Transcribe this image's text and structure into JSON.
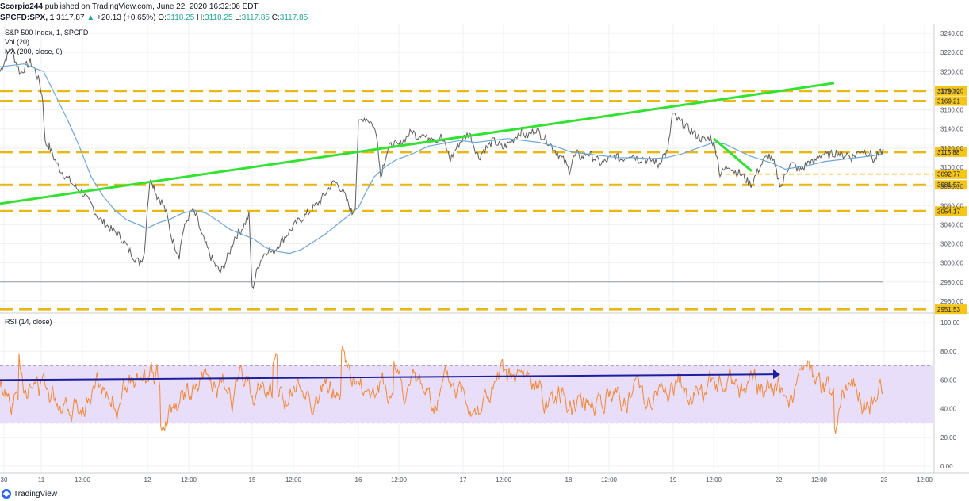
{
  "header": {
    "publisher": "Scorpio244",
    "published_text": "published on TradingView.com, June 22, 2020 16:32:06 EDT",
    "symbol": "SPCFD:SPX, 1",
    "last": "3117.87",
    "change": "+20.13 (+0.65%)",
    "o_label": "O:",
    "o_val": "3118.25",
    "h_label": "H:",
    "h_val": "3118.25",
    "l_label": "L:",
    "l_val": "3117.85",
    "c_label": "C:",
    "c_val": "3117.85"
  },
  "legend": {
    "title": "S&P 500 Index, 1, SPCFD",
    "vol": "Vol (20)",
    "ma": "MA (200, close, 0)",
    "rsi": "RSI (14, close)"
  },
  "footer": {
    "brand": "TradingView"
  },
  "colors": {
    "candle": "#5d5d5d",
    "ma": "#6ea6d6",
    "trend": "#33e133",
    "level": "#e8b816",
    "rsi": "#f08a3a",
    "rsi_band": "#e9defa",
    "rsi_arrow": "#1d1f9e",
    "grid": "#eef0f3"
  },
  "chart_data": [
    {
      "type": "line",
      "name": "S&P 500 Index, 1, SPCFD",
      "x_ticks": [
        "30",
        "11",
        "12:00",
        "12",
        "12:00",
        "15",
        "12:00",
        "16",
        "12:00",
        "17",
        "12:00",
        "18",
        "12:00",
        "19",
        "12:00",
        "22",
        "12:00",
        "23",
        "12:00"
      ],
      "y_ticks": [
        2960,
        2980,
        3000,
        3020,
        3040,
        3060,
        3080,
        3100,
        3120,
        3140,
        3160,
        3180,
        3200,
        3220,
        3240
      ],
      "ylim": [
        2950,
        3250
      ],
      "price_path": [
        [
          0,
          3200
        ],
        [
          8,
          3215
        ],
        [
          14,
          3225
        ],
        [
          20,
          3210
        ],
        [
          26,
          3198
        ],
        [
          32,
          3205
        ],
        [
          38,
          3210
        ],
        [
          44,
          3202
        ],
        [
          50,
          3188
        ],
        [
          54,
          3170
        ],
        [
          57,
          3125
        ],
        [
          62,
          3122
        ],
        [
          68,
          3110
        ],
        [
          74,
          3100
        ],
        [
          80,
          3093
        ],
        [
          86,
          3088
        ],
        [
          92,
          3082
        ],
        [
          98,
          3077
        ],
        [
          104,
          3073
        ],
        [
          110,
          3066
        ],
        [
          116,
          3060
        ],
        [
          122,
          3050
        ],
        [
          128,
          3044
        ],
        [
          134,
          3040
        ],
        [
          140,
          3035
        ],
        [
          146,
          3032
        ],
        [
          152,
          3027
        ],
        [
          158,
          3020
        ],
        [
          164,
          3012
        ],
        [
          170,
          3005
        ],
        [
          176,
          3000
        ],
        [
          182,
          3010
        ],
        [
          186,
          3060
        ],
        [
          190,
          3090
        ],
        [
          194,
          3080
        ],
        [
          198,
          3070
        ],
        [
          204,
          3064
        ],
        [
          210,
          3052
        ],
        [
          216,
          3028
        ],
        [
          222,
          3015
        ],
        [
          226,
          3008
        ],
        [
          230,
          3030
        ],
        [
          236,
          3045
        ],
        [
          242,
          3055
        ],
        [
          248,
          3048
        ],
        [
          254,
          3030
        ],
        [
          260,
          3018
        ],
        [
          266,
          3006
        ],
        [
          272,
          2997
        ],
        [
          278,
          2990
        ],
        [
          284,
          3000
        ],
        [
          290,
          3012
        ],
        [
          296,
          3027
        ],
        [
          302,
          3032
        ],
        [
          308,
          3040
        ],
        [
          314,
          3050
        ],
        [
          318,
          2972
        ],
        [
          322,
          2985
        ],
        [
          326,
          2998
        ],
        [
          332,
          3008
        ],
        [
          338,
          3014
        ],
        [
          344,
          3010
        ],
        [
          350,
          3018
        ],
        [
          356,
          3024
        ],
        [
          362,
          3030
        ],
        [
          368,
          3036
        ],
        [
          374,
          3042
        ],
        [
          380,
          3046
        ],
        [
          386,
          3050
        ],
        [
          392,
          3055
        ],
        [
          398,
          3060
        ],
        [
          404,
          3065
        ],
        [
          410,
          3072
        ],
        [
          416,
          3080
        ],
        [
          422,
          3085
        ],
        [
          428,
          3080
        ],
        [
          434,
          3072
        ],
        [
          440,
          3060
        ],
        [
          444,
          3052
        ],
        [
          448,
          3060
        ],
        [
          452,
          3145
        ],
        [
          458,
          3152
        ],
        [
          464,
          3150
        ],
        [
          470,
          3145
        ],
        [
          476,
          3130
        ],
        [
          480,
          3090
        ],
        [
          484,
          3105
        ],
        [
          490,
          3120
        ],
        [
          496,
          3125
        ],
        [
          502,
          3122
        ],
        [
          508,
          3128
        ],
        [
          514,
          3133
        ],
        [
          520,
          3138
        ],
        [
          526,
          3132
        ],
        [
          532,
          3136
        ],
        [
          538,
          3130
        ],
        [
          544,
          3134
        ],
        [
          550,
          3128
        ],
        [
          556,
          3132
        ],
        [
          562,
          3122
        ],
        [
          568,
          3108
        ],
        [
          574,
          3118
        ],
        [
          580,
          3126
        ],
        [
          586,
          3132
        ],
        [
          592,
          3136
        ],
        [
          598,
          3122
        ],
        [
          604,
          3110
        ],
        [
          610,
          3118
        ],
        [
          616,
          3122
        ],
        [
          622,
          3128
        ],
        [
          628,
          3124
        ],
        [
          634,
          3120
        ],
        [
          640,
          3124
        ],
        [
          646,
          3128
        ],
        [
          652,
          3134
        ],
        [
          658,
          3138
        ],
        [
          664,
          3132
        ],
        [
          670,
          3136
        ],
        [
          676,
          3140
        ],
        [
          682,
          3134
        ],
        [
          688,
          3130
        ],
        [
          694,
          3124
        ],
        [
          700,
          3118
        ],
        [
          706,
          3112
        ],
        [
          712,
          3106
        ],
        [
          718,
          3096
        ],
        [
          722,
          3108
        ],
        [
          728,
          3114
        ],
        [
          734,
          3110
        ],
        [
          740,
          3115
        ],
        [
          746,
          3112
        ],
        [
          752,
          3108
        ],
        [
          758,
          3104
        ],
        [
          764,
          3106
        ],
        [
          770,
          3110
        ],
        [
          776,
          3112
        ],
        [
          782,
          3108
        ],
        [
          788,
          3110
        ],
        [
          794,
          3114
        ],
        [
          800,
          3112
        ],
        [
          806,
          3108
        ],
        [
          812,
          3110
        ],
        [
          818,
          3106
        ],
        [
          824,
          3108
        ],
        [
          830,
          3102
        ],
        [
          836,
          3112
        ],
        [
          842,
          3116
        ],
        [
          848,
          3156
        ],
        [
          854,
          3150
        ],
        [
          860,
          3146
        ],
        [
          866,
          3142
        ],
        [
          872,
          3138
        ],
        [
          878,
          3134
        ],
        [
          884,
          3130
        ],
        [
          890,
          3128
        ],
        [
          896,
          3132
        ],
        [
          900,
          3124
        ],
        [
          904,
          3114
        ],
        [
          908,
          3092
        ],
        [
          914,
          3098
        ],
        [
          920,
          3102
        ],
        [
          926,
          3096
        ],
        [
          932,
          3094
        ],
        [
          938,
          3090
        ],
        [
          944,
          3084
        ],
        [
          948,
          3082
        ],
        [
          952,
          3090
        ],
        [
          958,
          3100
        ],
        [
          964,
          3108
        ],
        [
          970,
          3112
        ],
        [
          976,
          3104
        ],
        [
          982,
          3086
        ],
        [
          986,
          3080
        ],
        [
          990,
          3092
        ],
        [
          996,
          3104
        ],
        [
          1002,
          3102
        ],
        [
          1008,
          3096
        ],
        [
          1014,
          3100
        ],
        [
          1020,
          3106
        ],
        [
          1026,
          3104
        ],
        [
          1032,
          3112
        ],
        [
          1038,
          3114
        ],
        [
          1044,
          3112
        ],
        [
          1050,
          3114
        ],
        [
          1056,
          3116
        ],
        [
          1062,
          3112
        ],
        [
          1068,
          3114
        ],
        [
          1074,
          3110
        ],
        [
          1080,
          3114
        ],
        [
          1086,
          3118
        ],
        [
          1092,
          3116
        ],
        [
          1098,
          3114
        ],
        [
          1102,
          3106
        ],
        [
          1106,
          3112
        ],
        [
          1112,
          3116
        ],
        [
          1114,
          3118
        ]
      ],
      "ma_path": [
        [
          0,
          3205
        ],
        [
          30,
          3208
        ],
        [
          55,
          3200
        ],
        [
          70,
          3175
        ],
        [
          85,
          3150
        ],
        [
          100,
          3122
        ],
        [
          115,
          3090
        ],
        [
          130,
          3070
        ],
        [
          145,
          3055
        ],
        [
          160,
          3045
        ],
        [
          175,
          3040
        ],
        [
          185,
          3036
        ],
        [
          200,
          3042
        ],
        [
          215,
          3046
        ],
        [
          230,
          3052
        ],
        [
          245,
          3055
        ],
        [
          260,
          3052
        ],
        [
          275,
          3044
        ],
        [
          290,
          3035
        ],
        [
          305,
          3030
        ],
        [
          320,
          3025
        ],
        [
          335,
          3016
        ],
        [
          350,
          3012
        ],
        [
          365,
          3010
        ],
        [
          380,
          3014
        ],
        [
          395,
          3022
        ],
        [
          410,
          3030
        ],
        [
          425,
          3040
        ],
        [
          440,
          3050
        ],
        [
          452,
          3058
        ],
        [
          462,
          3075
        ],
        [
          472,
          3090
        ],
        [
          485,
          3100
        ],
        [
          500,
          3108
        ],
        [
          520,
          3114
        ],
        [
          540,
          3122
        ],
        [
          560,
          3125
        ],
        [
          580,
          3128
        ],
        [
          600,
          3126
        ],
        [
          620,
          3128
        ],
        [
          640,
          3130
        ],
        [
          660,
          3128
        ],
        [
          680,
          3126
        ],
        [
          700,
          3122
        ],
        [
          720,
          3116
        ],
        [
          740,
          3114
        ],
        [
          760,
          3112
        ],
        [
          780,
          3110
        ],
        [
          800,
          3110
        ],
        [
          820,
          3109
        ],
        [
          840,
          3110
        ],
        [
          860,
          3114
        ],
        [
          880,
          3120
        ],
        [
          900,
          3126
        ],
        [
          915,
          3124
        ],
        [
          930,
          3118
        ],
        [
          945,
          3112
        ],
        [
          960,
          3108
        ],
        [
          975,
          3104
        ],
        [
          990,
          3098
        ],
        [
          1005,
          3100
        ],
        [
          1020,
          3102
        ],
        [
          1040,
          3106
        ],
        [
          1060,
          3108
        ],
        [
          1080,
          3110
        ],
        [
          1100,
          3112
        ],
        [
          1114,
          3114
        ]
      ],
      "trendline": [
        [
          0,
          3062
        ],
        [
          1052,
          3188
        ]
      ],
      "short_trend": [
        [
          900,
          3130
        ],
        [
          948,
          3096
        ]
      ],
      "levels": [
        {
          "value": 3179.72,
          "label": "3179.72",
          "style": "dashed"
        },
        {
          "value": 3169.21,
          "label": "3169.21",
          "style": "dashed"
        },
        {
          "value": 3115.88,
          "label": "3115.88",
          "style": "dashed"
        },
        {
          "value": 3092.77,
          "label": "3092.77",
          "style": "dotted",
          "from": 905
        },
        {
          "value": 3081.57,
          "label": "3081.57",
          "style": "dashed"
        },
        {
          "value": 3054.17,
          "label": "3054.17",
          "style": "dashed"
        },
        {
          "value": 2951.53,
          "label": "2951.53",
          "style": "dashed"
        }
      ],
      "horizontal_line": 2980
    },
    {
      "type": "line",
      "name": "RSI (14, close)",
      "y_ticks": [
        0.0,
        20.0,
        40.0,
        60.0,
        80.0,
        100.0
      ],
      "ylim": [
        -5,
        105
      ],
      "band": [
        30,
        70
      ],
      "arrow": [
        [
          0,
          60
        ],
        [
          980,
          64
        ]
      ]
    }
  ]
}
